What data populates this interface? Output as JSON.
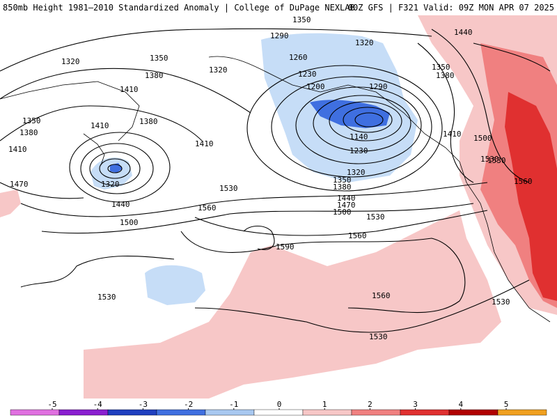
{
  "header": {
    "title_left": "850mb Height 1981–2010 Standardized Anomaly | College of DuPage NEXLAB",
    "title_right": "00Z GFS | F321 Valid: 09Z MON APR 07 2025"
  },
  "map": {
    "contour_labels": [
      "1350",
      "1320",
      "1350",
      "1380",
      "1410",
      "1350",
      "1380",
      "1410",
      "1410",
      "1380",
      "1470",
      "1320",
      "1440",
      "1500",
      "1410",
      "1530",
      "1560",
      "1590",
      "1560",
      "1530",
      "1530",
      "1560",
      "1530",
      "1290",
      "1260",
      "1230",
      "1200",
      "1140",
      "1230",
      "1320",
      "1350",
      "1380",
      "1440",
      "1470",
      "1500",
      "1530",
      "1320",
      "1290",
      "1350",
      "1380",
      "1410",
      "1440",
      "1500",
      "1530",
      "1560",
      "1530",
      "1320"
    ]
  },
  "colorbar": {
    "ticks": [
      "-5",
      "-4",
      "-3",
      "-2",
      "-1",
      "0",
      "1",
      "2",
      "3",
      "4",
      "5"
    ],
    "colors": [
      "#e070e0",
      "#8a1fd0",
      "#1f3fbf",
      "#3f6fe0",
      "#a8c8f0",
      "#ffffff",
      "#f7c7c7",
      "#f08080",
      "#e03030",
      "#b00000",
      "#f0a020"
    ]
  }
}
